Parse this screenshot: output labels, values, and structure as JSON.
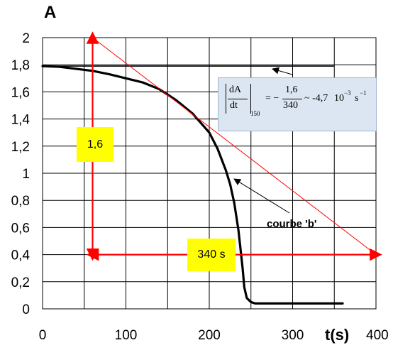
{
  "chart_data": {
    "type": "line",
    "ylabel": "A",
    "xlabel": "t(s)",
    "xlim": [
      0,
      400
    ],
    "ylim": [
      0,
      2
    ],
    "x_ticks": [
      "0",
      "100",
      "200",
      "300",
      "400"
    ],
    "y_ticks": [
      "0",
      "0,2",
      "0,4",
      "0,6",
      "0,8",
      "1",
      "1,2",
      "1,4",
      "1,6",
      "1,8",
      "2"
    ],
    "grid": true,
    "series": [
      {
        "name": "courbe 'b'",
        "color": "#000000",
        "x": [
          0,
          20,
          40,
          60,
          80,
          100,
          120,
          140,
          160,
          180,
          190,
          200,
          210,
          220,
          225,
          230,
          235,
          240,
          242,
          245,
          250,
          255,
          260,
          300,
          350,
          360
        ],
        "y": [
          1.79,
          1.785,
          1.77,
          1.755,
          1.73,
          1.7,
          1.67,
          1.62,
          1.54,
          1.44,
          1.37,
          1.3,
          1.18,
          1.02,
          0.92,
          0.78,
          0.58,
          0.3,
          0.16,
          0.08,
          0.05,
          0.04,
          0.04,
          0.04,
          0.04,
          0.04
        ]
      }
    ],
    "reference_line": {
      "y": 1.79,
      "x_range": [
        0,
        350
      ]
    },
    "tangent": {
      "from": [
        60,
        2.0
      ],
      "to": [
        400,
        0.4
      ],
      "color": "#ff0000"
    },
    "vertical_marker": {
      "x": 60,
      "y_range": [
        0.4,
        2.0
      ]
    },
    "horizontal_marker": {
      "y": 0.4,
      "x_range": [
        60,
        400
      ]
    }
  },
  "annotations": {
    "curve_label": "courbe 'b'",
    "delta_a_label": "1,6",
    "delta_t_label": "340 s"
  },
  "formula": {
    "num": "dA",
    "den": "dt",
    "sub": "150",
    "eq": "= −",
    "frac_num": "1,6",
    "frac_den": "340",
    "approx": "~ -4,7",
    "base": "10",
    "exp": "−3",
    "unit": "s",
    "unit_exp": "−1"
  },
  "colors": {
    "curve": "#000000",
    "tangent": "#ff0000",
    "note_background": "#ffff00",
    "formula_background": "#dce6f2"
  }
}
